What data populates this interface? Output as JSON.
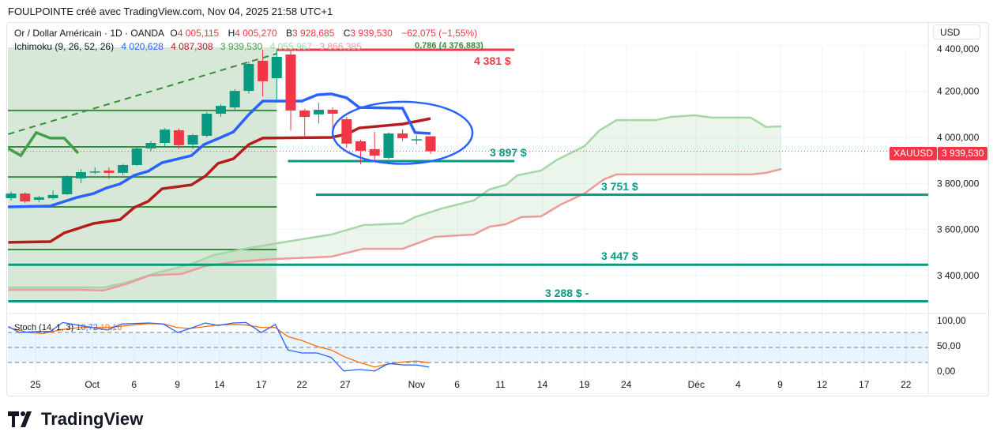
{
  "credit": "FOULPOINTE créé avec TradingView.com, Nov 04, 2025 21:58 UTC+1",
  "legend": {
    "symbol": "Or / Dollar Américain · 1D · OANDA",
    "o_label": "O",
    "o": "4 005,115",
    "h_label": "H",
    "h": "4 005,270",
    "b_label": "B",
    "b": "3 928,685",
    "c_label": "C",
    "c": "3 939,530",
    "change": "−62,075 (−1,55%)"
  },
  "ichimoku": {
    "label": "Ichimoku (9, 26, 52, 26)",
    "tenkan": "4 020,628",
    "kijun": "4 087,308",
    "chikou": "3 939,530",
    "span_a": "4 055,967",
    "span_b": "3 866,385"
  },
  "fib_label": "0,786 (4 376,883)",
  "currency_button": "USD",
  "price_tag": {
    "symbol": "XAUUSD",
    "price": "3 939,530"
  },
  "levels": [
    {
      "label": "4 381 $",
      "price": 4381,
      "color": "#f23645",
      "from": 19,
      "to": 36
    },
    {
      "label": "3 897 $",
      "price": 3897,
      "color": "#089981",
      "from": 19.8,
      "to": 36
    },
    {
      "label": "3 751 $",
      "price": 3751,
      "color": "#089981",
      "from": 21.8,
      "to": 65.6
    },
    {
      "label": "3 447 $",
      "price": 3447,
      "color": "#089981",
      "from": -0.2,
      "to": 65.6
    },
    {
      "label": "3 288 $ -",
      "price": 3288,
      "color": "#089981",
      "from": -0.2,
      "to": 65.6
    }
  ],
  "colors": {
    "up": "#089981",
    "down": "#f23645",
    "tenkan": "#2962ff",
    "kijun": "#b71c1c",
    "chikou": "#43a047",
    "spanA": "#a5d6a7",
    "spanB": "#ef9a9a",
    "stochK": "#2962ff",
    "stochD": "#ff6d00"
  },
  "stoch": {
    "label": "Stoch (14, 1, 3)",
    "k": "10,72",
    "d": "19,16"
  },
  "chart_data": {
    "type": "candlestick",
    "price_axis": [
      "4 400,000",
      "4 200,000",
      "4 000,000",
      "3 800,000",
      "3 600,000",
      "3 400,000"
    ],
    "price_axis_values": [
      4400,
      4200,
      4000,
      3800,
      3600,
      3400
    ],
    "stoch_axis": [
      "100,00",
      "50,00",
      "0,00"
    ],
    "stoch_axis_values": [
      100,
      50,
      0
    ],
    "x_labels": [
      {
        "t": "25",
        "d": 1.75
      },
      {
        "t": "Oct",
        "d": 5.8
      },
      {
        "t": "6",
        "d": 8.8
      },
      {
        "t": "9",
        "d": 11.9
      },
      {
        "t": "14",
        "d": 14.9
      },
      {
        "t": "17",
        "d": 17.9
      },
      {
        "t": "22",
        "d": 20.8
      },
      {
        "t": "27",
        "d": 23.9
      },
      {
        "t": "Nov",
        "d": 29
      },
      {
        "t": "6",
        "d": 31.9
      },
      {
        "t": "11",
        "d": 35
      },
      {
        "t": "14",
        "d": 38
      },
      {
        "t": "19",
        "d": 41
      },
      {
        "t": "24",
        "d": 44
      },
      {
        "t": "Déc",
        "d": 49
      },
      {
        "t": "4",
        "d": 52
      },
      {
        "t": "9",
        "d": 55
      },
      {
        "t": "12",
        "d": 58
      },
      {
        "t": "17",
        "d": 61
      },
      {
        "t": "22",
        "d": 64
      }
    ],
    "ohlc": [
      [
        3736,
        3765,
        3725,
        3756
      ],
      [
        3756,
        3762,
        3715,
        3722
      ],
      [
        3729,
        3746,
        3718,
        3740
      ],
      [
        3736,
        3770,
        3730,
        3750
      ],
      [
        3753,
        3835,
        3750,
        3832
      ],
      [
        3822,
        3862,
        3800,
        3849
      ],
      [
        3850,
        3870,
        3840,
        3852
      ],
      [
        3856,
        3870,
        3820,
        3846
      ],
      [
        3846,
        3885,
        3835,
        3880
      ],
      [
        3880,
        3955,
        3875,
        3952
      ],
      [
        3952,
        3985,
        3940,
        3976
      ],
      [
        3976,
        4040,
        3960,
        4034
      ],
      [
        4031,
        4040,
        3950,
        3966
      ],
      [
        3969,
        4015,
        3950,
        4010
      ],
      [
        4007,
        4110,
        4000,
        4103
      ],
      [
        4103,
        4145,
        4090,
        4137
      ],
      [
        4130,
        4210,
        4120,
        4202
      ],
      [
        4202,
        4330,
        4190,
        4319
      ],
      [
        4333,
        4381,
        4178,
        4244
      ],
      [
        4257,
        4381,
        4150,
        4350
      ],
      [
        4360,
        4381,
        4030,
        4117
      ],
      [
        4117,
        4125,
        3997,
        4089
      ],
      [
        4100,
        4150,
        4060,
        4120
      ],
      [
        4120,
        4130,
        4040,
        4103
      ],
      [
        4079,
        4090,
        3955,
        3973
      ],
      [
        3983,
        3990,
        3883,
        3942
      ],
      [
        3949,
        4024,
        3897,
        3921
      ],
      [
        3911,
        4022,
        3905,
        4017
      ],
      [
        4017,
        4035,
        3985,
        3997
      ],
      [
        3990,
        4010,
        3970,
        3992
      ],
      [
        4005,
        4005,
        3928,
        3940
      ]
    ],
    "tenkan": [
      [
        -0.2,
        3698
      ],
      [
        2.8,
        3702
      ],
      [
        4.7,
        3739
      ],
      [
        5.9,
        3756
      ],
      [
        6.8,
        3780
      ],
      [
        7.8,
        3798
      ],
      [
        8.8,
        3835
      ],
      [
        9.8,
        3853
      ],
      [
        10.8,
        3890
      ],
      [
        12.9,
        3921
      ],
      [
        13.8,
        3969
      ],
      [
        14.9,
        3997
      ],
      [
        15.9,
        4024
      ],
      [
        17,
        4099
      ],
      [
        18,
        4158
      ],
      [
        20.8,
        4158
      ],
      [
        21.9,
        4185
      ],
      [
        22.9,
        4189
      ],
      [
        24,
        4172
      ],
      [
        24.9,
        4130
      ],
      [
        28,
        4127
      ],
      [
        28.9,
        4021
      ],
      [
        30,
        4017
      ]
    ],
    "kijun": [
      [
        -0.2,
        3544
      ],
      [
        2.8,
        3547
      ],
      [
        3.8,
        3585
      ],
      [
        5.9,
        3626
      ],
      [
        7.8,
        3643
      ],
      [
        8.8,
        3695
      ],
      [
        9.8,
        3722
      ],
      [
        10.8,
        3777
      ],
      [
        12.9,
        3794
      ],
      [
        13.9,
        3832
      ],
      [
        14.8,
        3887
      ],
      [
        15.9,
        3907
      ],
      [
        17,
        3969
      ],
      [
        18,
        3997
      ],
      [
        22.9,
        4000
      ],
      [
        24,
        4014
      ],
      [
        24.9,
        4041
      ],
      [
        28,
        4058
      ],
      [
        30,
        4082
      ]
    ],
    "chikou": [
      [
        -0.2,
        3952
      ],
      [
        0.7,
        3921
      ],
      [
        1.8,
        4021
      ],
      [
        2.8,
        3997
      ],
      [
        3.8,
        3997
      ],
      [
        4.8,
        3931
      ]
    ],
    "span_a": [
      [
        -0.2,
        3348
      ],
      [
        6.6,
        3348
      ],
      [
        8.2,
        3369
      ],
      [
        10.5,
        3413
      ],
      [
        12.8,
        3448
      ],
      [
        14.5,
        3489
      ],
      [
        16.7,
        3516
      ],
      [
        19,
        3540
      ],
      [
        22.9,
        3578
      ],
      [
        25.2,
        3619
      ],
      [
        28,
        3626
      ],
      [
        28.9,
        3654
      ],
      [
        30.8,
        3691
      ],
      [
        33.1,
        3726
      ],
      [
        34.2,
        3774
      ],
      [
        35.4,
        3794
      ],
      [
        36.2,
        3835
      ],
      [
        37.9,
        3856
      ],
      [
        39,
        3901
      ],
      [
        41,
        3962
      ],
      [
        42.1,
        4031
      ],
      [
        43.3,
        4075
      ],
      [
        46.1,
        4075
      ],
      [
        47.2,
        4089
      ],
      [
        48.9,
        4096
      ],
      [
        50.1,
        4086
      ],
      [
        52.9,
        4086
      ],
      [
        54,
        4045
      ],
      [
        55.1,
        4048
      ]
    ],
    "span_b": [
      [
        -0.2,
        3338
      ],
      [
        4.9,
        3338
      ],
      [
        6.6,
        3335
      ],
      [
        8.2,
        3362
      ],
      [
        9.9,
        3400
      ],
      [
        12.2,
        3407
      ],
      [
        13.9,
        3441
      ],
      [
        16.2,
        3461
      ],
      [
        19,
        3472
      ],
      [
        21.8,
        3479
      ],
      [
        22.9,
        3482
      ],
      [
        25.2,
        3516
      ],
      [
        28,
        3516
      ],
      [
        30.3,
        3568
      ],
      [
        33.1,
        3578
      ],
      [
        34.2,
        3612
      ],
      [
        35.4,
        3623
      ],
      [
        36.5,
        3654
      ],
      [
        37.9,
        3657
      ],
      [
        39.3,
        3708
      ],
      [
        41,
        3756
      ],
      [
        42.4,
        3818
      ],
      [
        43.3,
        3839
      ],
      [
        52.9,
        3839
      ],
      [
        54,
        3846
      ],
      [
        55.1,
        3863
      ]
    ],
    "trendline": [
      [
        -0.2,
        4014
      ],
      [
        19,
        4364
      ]
    ],
    "zone_levels": [
      4117,
      3959,
      3828,
      3698,
      3513
    ],
    "ellipse": {
      "center": [
        28,
        4020
      ],
      "radius_days": 5,
      "radius_price": 135
    },
    "stoch_k": [
      [
        -0.2,
        92
      ],
      [
        0.6,
        80
      ],
      [
        1.8,
        82
      ],
      [
        2.8,
        82
      ],
      [
        3.7,
        100
      ],
      [
        4.9,
        94
      ],
      [
        6.9,
        85
      ],
      [
        7.9,
        97
      ],
      [
        9.8,
        99
      ],
      [
        10.9,
        97
      ],
      [
        11.9,
        80
      ],
      [
        12.8,
        88
      ],
      [
        13.9,
        99
      ],
      [
        14.8,
        94
      ],
      [
        15.9,
        99
      ],
      [
        16.8,
        100
      ],
      [
        17.9,
        80
      ],
      [
        18.9,
        96
      ],
      [
        19.8,
        45
      ],
      [
        20.8,
        39
      ],
      [
        21.9,
        39
      ],
      [
        22.9,
        30
      ],
      [
        23.8,
        3
      ],
      [
        24.9,
        6
      ],
      [
        26,
        3
      ],
      [
        27,
        18
      ],
      [
        28.1,
        15
      ],
      [
        29,
        15
      ],
      [
        29.9,
        10.72
      ]
    ],
    "stoch_d": [
      [
        -0.2,
        90
      ],
      [
        1.2,
        80
      ],
      [
        2.3,
        78
      ],
      [
        3.7,
        86
      ],
      [
        4.9,
        90
      ],
      [
        6.9,
        90
      ],
      [
        8,
        93
      ],
      [
        9.8,
        98
      ],
      [
        10.9,
        97
      ],
      [
        11.9,
        90
      ],
      [
        12.8,
        88
      ],
      [
        13.9,
        92
      ],
      [
        14.8,
        95
      ],
      [
        16,
        96
      ],
      [
        16.8,
        95
      ],
      [
        17.9,
        90
      ],
      [
        18.9,
        90
      ],
      [
        19.8,
        72
      ],
      [
        20.8,
        64
      ],
      [
        21.9,
        52
      ],
      [
        22.9,
        45
      ],
      [
        23.8,
        32
      ],
      [
        24.9,
        20
      ],
      [
        26,
        11
      ],
      [
        27,
        17
      ],
      [
        28.1,
        21
      ],
      [
        29,
        23
      ],
      [
        29.9,
        19.16
      ]
    ]
  },
  "logo_text": "TradingView"
}
